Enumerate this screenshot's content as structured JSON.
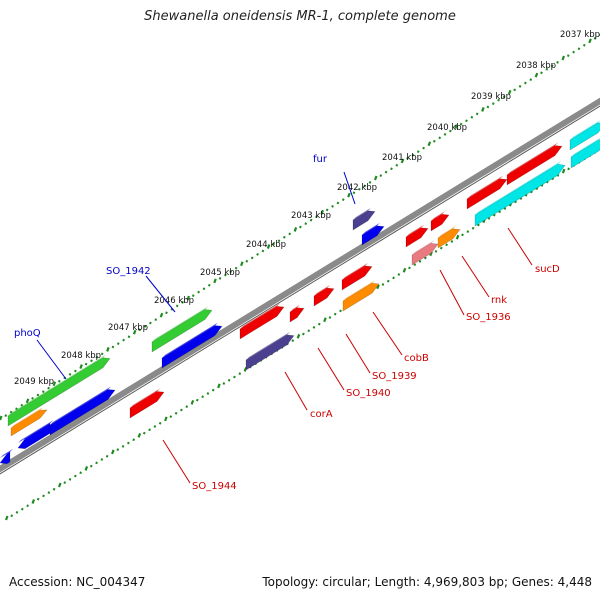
{
  "title": "Shewanella oneidensis MR-1, complete genome",
  "footer": {
    "accession": "Accession: NC_004347",
    "summary": "Topology: circular; Length: 4,969,803 bp; Genes: 4,448"
  },
  "colors": {
    "backbone": "#808080",
    "tick": "#1f8a1f",
    "red": "#ee0000",
    "green": "#33cc33",
    "blue": "#0000ee",
    "navy": "#4b3f8f",
    "orange": "#ff8c00",
    "cyan": "#00e5e5",
    "pink": "#e87a80",
    "label_red": "#cc0000",
    "label_blue": "#0000cc"
  },
  "kbp_labels": [
    "2037 kbp",
    "2038 kbp",
    "2039 kbp",
    "2040 kbp",
    "2041 kbp",
    "2042 kbp",
    "2043 kbp",
    "2044 kbp",
    "2045 kbp",
    "2046 kbp",
    "2047 kbp",
    "2048 kbp",
    "2049 kbp"
  ],
  "gene_labels": [
    {
      "text": "fur",
      "color": "blue"
    },
    {
      "text": "SO_1942",
      "color": "blue"
    },
    {
      "text": "phoQ",
      "color": "blue"
    },
    {
      "text": "sucD",
      "color": "red"
    },
    {
      "text": "rnk",
      "color": "red"
    },
    {
      "text": "SO_1936",
      "color": "red"
    },
    {
      "text": "cobB",
      "color": "red"
    },
    {
      "text": "SO_1939",
      "color": "red"
    },
    {
      "text": "SO_1940",
      "color": "red"
    },
    {
      "text": "corA",
      "color": "red"
    },
    {
      "text": "SO_1944",
      "color": "red"
    }
  ]
}
